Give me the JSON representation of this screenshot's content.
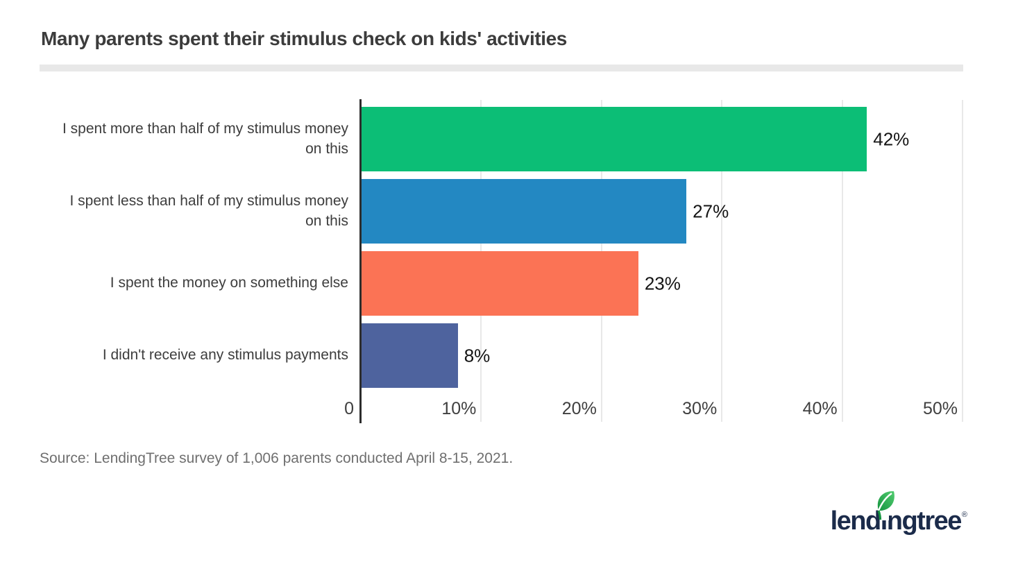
{
  "header": {
    "title": "Many parents spent their stimulus check on kids' activities"
  },
  "chart_data": {
    "type": "bar",
    "orientation": "horizontal",
    "categories": [
      "I spent more than half of my stimulus money\non this",
      "I spent less than half of my stimulus money\non this",
      "I spent the money on something else",
      "I didn't receive any stimulus payments"
    ],
    "values": [
      42,
      27,
      23,
      8
    ],
    "value_labels": [
      "42%",
      "27%",
      "23%",
      "8%"
    ],
    "bar_colors": [
      "#0cbe76",
      "#2388c2",
      "#fb7355",
      "#4e639e"
    ],
    "x_ticks": [
      {
        "value": 0,
        "label": "0"
      },
      {
        "value": 10,
        "label": "10%"
      },
      {
        "value": 20,
        "label": "20%"
      },
      {
        "value": 30,
        "label": "30%"
      },
      {
        "value": 40,
        "label": "40%"
      },
      {
        "value": 50,
        "label": "50%"
      }
    ],
    "xlim": [
      0,
      50
    ],
    "grid": "vertical",
    "gridline_color": "#e8e8e8",
    "axis_color": "#2d2d2d",
    "title": "Many parents spent their stimulus check on kids' activities",
    "xlabel": "",
    "ylabel": ""
  },
  "source": {
    "text": "Source: LendingTree survey of 1,006 parents conducted April 8-15, 2021."
  },
  "logo": {
    "text": "lendingtree",
    "part1": "lend",
    "part_i": "i",
    "part2": "ngtree",
    "reg": "®",
    "text_color": "#1b2b4a",
    "leaf_color_dark": "#15933f",
    "leaf_color_light": "#52cd70"
  },
  "colors": {
    "background": "#ffffff",
    "title_text": "#3c3c3c",
    "divider": "#e8e8e8",
    "category_text": "#3d3d3d",
    "value_text": "#141414",
    "tick_text": "#3f3f3f",
    "source_text": "#6f6f6f"
  }
}
